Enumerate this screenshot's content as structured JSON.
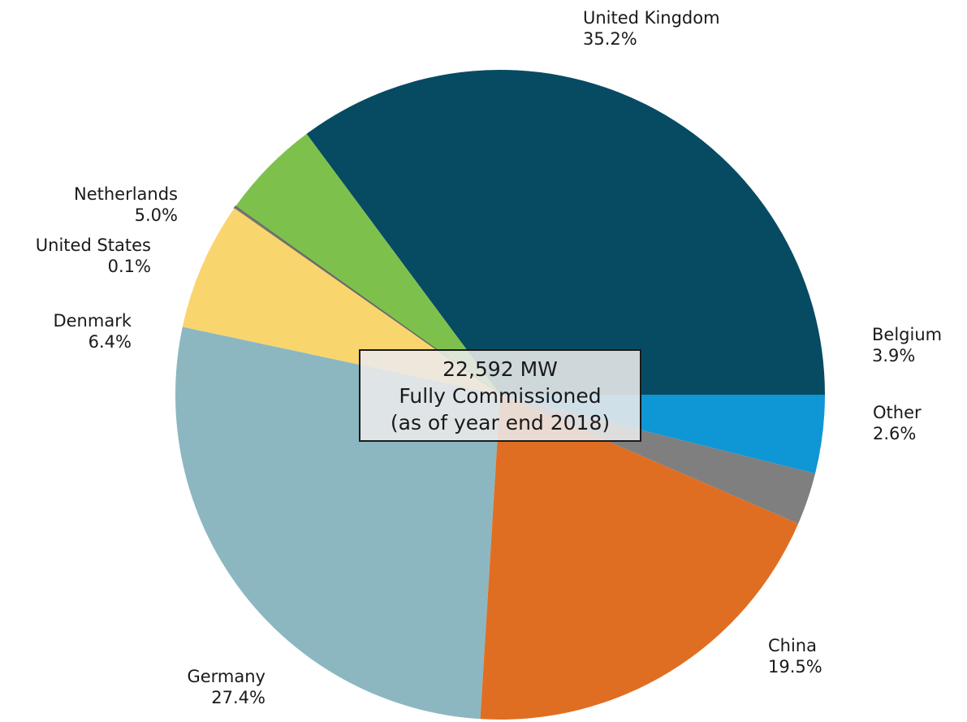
{
  "chart_data": {
    "type": "pie",
    "title": "",
    "categories": [
      "United Kingdom",
      "Netherlands",
      "United States",
      "Denmark",
      "Germany",
      "China",
      "Other",
      "Belgium"
    ],
    "values": [
      35.2,
      5.0,
      0.1,
      6.4,
      27.4,
      19.5,
      2.6,
      3.9
    ],
    "value_labels": [
      "35.2%",
      "5.0%",
      "0.1%",
      "6.4%",
      "27.4%",
      "19.5%",
      "2.6%",
      "3.9%"
    ],
    "colors": [
      "#074b63",
      "#7dc14c",
      "#808080",
      "#f9d56e",
      "#8cb7c1",
      "#e06e22",
      "#7f7f7f",
      "#0f96d5"
    ],
    "start_angle_deg": 0,
    "direction": "counterclockwise",
    "legend": "none"
  },
  "annotation": {
    "line1": "22,592 MW",
    "line2": "Fully Commissioned",
    "line3": "(as of year end 2018)"
  }
}
